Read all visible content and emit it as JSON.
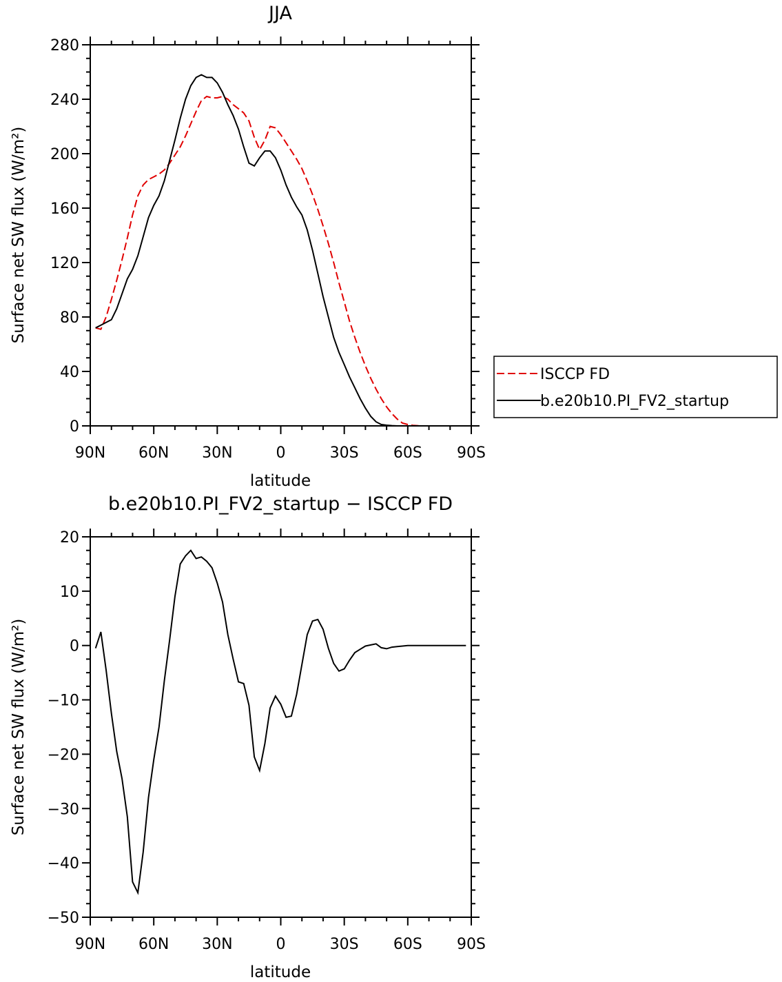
{
  "chart_data": [
    {
      "type": "line",
      "title": "JJA",
      "xlabel": "latitude",
      "ylabel": "Surface net SW flux (W/m²)",
      "xlim": [
        90,
        -90
      ],
      "ylim": [
        0,
        280
      ],
      "x_ticks": [
        90,
        60,
        30,
        0,
        -30,
        -60,
        -90
      ],
      "x_tick_labels": [
        "90N",
        "60N",
        "30N",
        "0",
        "30S",
        "60S",
        "90S"
      ],
      "y_ticks": [
        0,
        40,
        80,
        120,
        160,
        200,
        240,
        280
      ],
      "y_tick_labels": [
        "0",
        "40",
        "80",
        "120",
        "160",
        "200",
        "240",
        "280"
      ],
      "legend_position": "right",
      "series": [
        {
          "name": "ISCCP FD",
          "color": "#e00000",
          "style": "dashed",
          "x": [
            87.5,
            85,
            82.5,
            80,
            77.5,
            75,
            72.5,
            70,
            67.5,
            65,
            62.5,
            60,
            57.5,
            55,
            52.5,
            50,
            47.5,
            45,
            42.5,
            40,
            37.5,
            35,
            32.5,
            30,
            27.5,
            25,
            22.5,
            20,
            17.5,
            15,
            12.5,
            10,
            7.5,
            5,
            2.5,
            0,
            -2.5,
            -5,
            -7.5,
            -10,
            -12.5,
            -15,
            -17.5,
            -20,
            -22.5,
            -25,
            -27.5,
            -30,
            -32.5,
            -35,
            -37.5,
            -40,
            -42.5,
            -45,
            -47.5,
            -50,
            -52.5,
            -55,
            -57.5,
            -60,
            -62.5,
            -65,
            -67.5,
            -70,
            -72.5,
            -75,
            -77.5,
            -80,
            -82.5,
            -85,
            -87.5
          ],
          "values": [
            72,
            71,
            80,
            93,
            107,
            122,
            138,
            155,
            169,
            177,
            181,
            183,
            185,
            188,
            193,
            199,
            205,
            213,
            222,
            231,
            239,
            242,
            241,
            241,
            242,
            240,
            236,
            233,
            230,
            224,
            212,
            203,
            210,
            220,
            219,
            214,
            208,
            202,
            196,
            189,
            180,
            170,
            159,
            147,
            134,
            120,
            105,
            91,
            77,
            65,
            54,
            44,
            35,
            27,
            20,
            14,
            9,
            5,
            2,
            1,
            0.4,
            0.1,
            0,
            0,
            0,
            0,
            0,
            0,
            0,
            0,
            0
          ]
        },
        {
          "name": "b.e20b10.PI_FV2_startup",
          "color": "#000000",
          "style": "solid",
          "x": [
            87.5,
            85,
            82.5,
            80,
            77.5,
            75,
            72.5,
            70,
            67.5,
            65,
            62.5,
            60,
            57.5,
            55,
            52.5,
            50,
            47.5,
            45,
            42.5,
            40,
            37.5,
            35,
            32.5,
            30,
            27.5,
            25,
            22.5,
            20,
            17.5,
            15,
            12.5,
            10,
            7.5,
            5,
            2.5,
            0,
            -2.5,
            -5,
            -7.5,
            -10,
            -12.5,
            -15,
            -17.5,
            -20,
            -22.5,
            -25,
            -27.5,
            -30,
            -32.5,
            -35,
            -37.5,
            -40,
            -42.5,
            -45,
            -47.5,
            -50,
            -52.5,
            -55,
            -57.5,
            -60,
            -62.5,
            -65,
            -67.5,
            -70,
            -72.5,
            -75,
            -77.5,
            -80,
            -82.5,
            -85,
            -87.5
          ],
          "values": [
            72,
            74,
            76,
            78,
            86,
            97,
            108,
            115,
            125,
            139,
            153,
            162,
            169,
            180,
            195,
            210,
            226,
            240,
            250,
            256,
            258,
            256,
            256,
            252,
            245,
            236,
            228,
            218,
            205,
            193,
            191,
            197,
            202,
            202,
            197,
            188,
            177,
            168,
            161,
            155,
            144,
            129,
            112,
            95,
            80,
            65,
            54,
            45,
            36,
            28,
            20,
            13,
            7,
            3,
            1,
            0.5,
            0.2,
            0,
            0,
            0,
            0,
            0,
            0,
            0,
            0,
            0,
            0,
            0,
            0,
            0,
            0
          ]
        }
      ]
    },
    {
      "type": "line",
      "title": "b.e20b10.PI_FV2_startup − ISCCP FD",
      "xlabel": "latitude",
      "ylabel": "Surface net SW flux (W/m²)",
      "xlim": [
        90,
        -90
      ],
      "ylim": [
        -50,
        20
      ],
      "x_ticks": [
        90,
        60,
        30,
        0,
        -30,
        -60,
        -90
      ],
      "x_tick_labels": [
        "90N",
        "60N",
        "30N",
        "0",
        "30S",
        "60S",
        "90S"
      ],
      "y_ticks": [
        -50,
        -40,
        -30,
        -20,
        -10,
        0,
        10,
        20
      ],
      "y_tick_labels": [
        "−50",
        "−40",
        "−30",
        "−20",
        "−10",
        "0",
        "10",
        "20"
      ],
      "series": [
        {
          "color": "#000000",
          "style": "solid",
          "x": [
            87.5,
            85,
            82.5,
            80,
            77.5,
            75,
            72.5,
            70,
            67.5,
            65,
            62.5,
            60,
            57.5,
            55,
            52.5,
            50,
            47.5,
            45,
            42.5,
            40,
            37.5,
            35,
            32.5,
            30,
            27.5,
            25,
            22.5,
            20,
            17.5,
            15,
            12.5,
            10,
            7.5,
            5,
            2.5,
            0,
            -2.5,
            -5,
            -7.5,
            -10,
            -12.5,
            -15,
            -17.5,
            -20,
            -22.5,
            -25,
            -27.5,
            -30,
            -32.5,
            -35,
            -37.5,
            -40,
            -42.5,
            -45,
            -47.5,
            -50,
            -52.5,
            -55,
            -57.5,
            -60,
            -62.5,
            -65,
            -67.5,
            -70,
            -72.5,
            -75,
            -77.5,
            -80,
            -82.5,
            -85,
            -87.5
          ],
          "values": [
            -0.5,
            2.5,
            -4.5,
            -12.5,
            -19.5,
            -24.5,
            -31.5,
            -43.5,
            -45.5,
            -38,
            -28,
            -21,
            -15,
            -6.5,
            1,
            9,
            15,
            16.5,
            17.5,
            16,
            16.3,
            15.5,
            14.3,
            11.5,
            8,
            2,
            -2.5,
            -6.7,
            -7,
            -11,
            -20.5,
            -23,
            -18,
            -11.5,
            -9.3,
            -10.8,
            -13.2,
            -13,
            -9,
            -3.5,
            2,
            4.5,
            4.8,
            3,
            -0.5,
            -3.3,
            -4.7,
            -4.3,
            -2.7,
            -1.3,
            -0.7,
            -0.1,
            0.1,
            0.3,
            -0.4,
            -0.6,
            -0.3,
            -0.2,
            -0.1,
            0,
            0,
            0,
            0,
            0,
            0,
            0,
            0,
            0,
            0,
            0,
            0
          ]
        }
      ]
    }
  ]
}
